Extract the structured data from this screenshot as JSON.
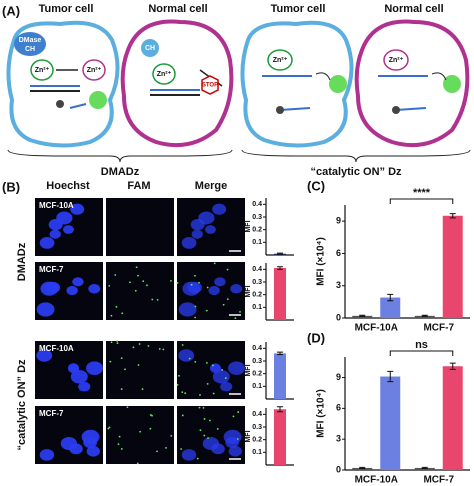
{
  "panel_a": {
    "label": "(A)",
    "cells": [
      "Tumor cell",
      "Normal cell",
      "Tumor cell",
      "Normal cell"
    ],
    "groups": [
      "DMADz",
      "“catalytic ON” Dz"
    ],
    "dmase": "DMase",
    "ch": "CH",
    "zn": "Zn²⁺",
    "stop": "STOP"
  },
  "panel_b": {
    "label": "(B)",
    "columns": [
      "Hoechst",
      "FAM",
      "Merge"
    ],
    "rows": [
      "MCF-10A",
      "MCF-7",
      "MCF-10A",
      "MCF-7"
    ],
    "groups": [
      "DMADz",
      "“catalytic ON” Dz"
    ]
  },
  "chart_data": [
    {
      "type": "bar",
      "ylabel": "MFI",
      "series": [
        {
          "color": "#24306e",
          "values": [
            0.01
          ],
          "errors": [
            0.005
          ]
        }
      ],
      "ylim": [
        0,
        0.45
      ],
      "yticks": [
        0.1,
        0.2,
        0.3,
        0.4
      ]
    },
    {
      "type": "bar",
      "ylabel": "MFI",
      "series": [
        {
          "color": "#e8466c",
          "values": [
            0.41
          ],
          "errors": [
            0.01
          ]
        }
      ],
      "ylim": [
        0,
        0.45
      ],
      "yticks": [
        0.1,
        0.2,
        0.3,
        0.4
      ]
    },
    {
      "type": "bar",
      "ylabel": "MFI",
      "series": [
        {
          "color": "#6b80e0",
          "values": [
            0.36
          ],
          "errors": [
            0.01
          ]
        }
      ],
      "ylim": [
        0,
        0.45
      ],
      "yticks": [
        0.1,
        0.2,
        0.3,
        0.4
      ]
    },
    {
      "type": "bar",
      "ylabel": "MFI",
      "series": [
        {
          "color": "#e8466c",
          "values": [
            0.44
          ],
          "errors": [
            0.02
          ]
        }
      ],
      "ylim": [
        0,
        0.45
      ],
      "yticks": [
        0.1,
        0.2,
        0.3,
        0.4
      ]
    },
    {
      "type": "bar",
      "label": "(C)",
      "ylabel": "MFI (×10⁴)",
      "categories": [
        "MCF-10A",
        "MCF-7"
      ],
      "series": [
        {
          "color": "#555555",
          "values": [
            0.2,
            0.2
          ],
          "errors": [
            0.05,
            0.05
          ]
        },
        {
          "colors": [
            "#6b80e0",
            "#e8466c"
          ],
          "values": [
            1.9,
            9.5
          ],
          "errors": [
            0.3,
            0.2
          ]
        }
      ],
      "ylim": [
        0,
        10.5
      ],
      "yticks": [
        0,
        3,
        6,
        9
      ],
      "annotation": "****"
    },
    {
      "type": "bar",
      "label": "(D)",
      "ylabel": "MFI (×10⁴)",
      "categories": [
        "MCF-10A",
        "MCF-7"
      ],
      "series": [
        {
          "color": "#555555",
          "values": [
            0.2,
            0.2
          ],
          "errors": [
            0.05,
            0.05
          ]
        },
        {
          "colors": [
            "#6b80e0",
            "#e8466c"
          ],
          "values": [
            9.1,
            10.1
          ],
          "errors": [
            0.5,
            0.3
          ]
        }
      ],
      "ylim": [
        0,
        11
      ],
      "yticks": [
        0,
        3,
        6,
        9
      ],
      "annotation": "ns"
    }
  ]
}
